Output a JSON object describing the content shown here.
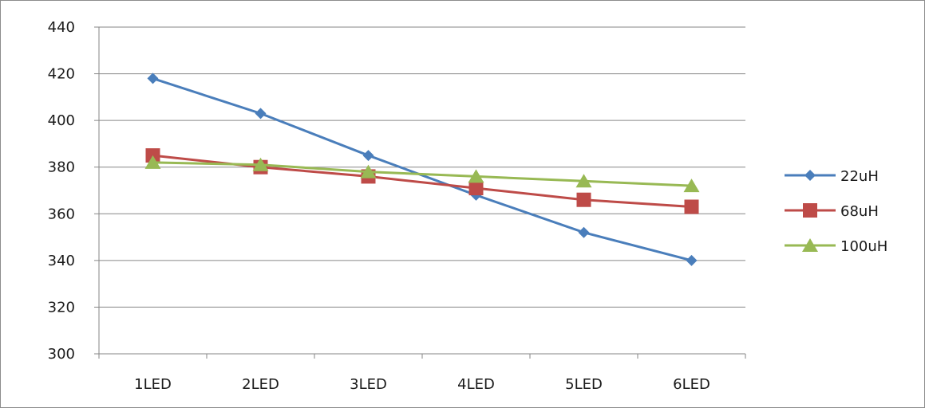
{
  "chart_data": {
    "type": "line",
    "title": "",
    "xlabel": "",
    "ylabel": "",
    "categories": [
      "1LED",
      "2LED",
      "3LED",
      "4LED",
      "5LED",
      "6LED"
    ],
    "ylim": [
      300,
      440
    ],
    "yticks": [
      300,
      320,
      340,
      360,
      380,
      400,
      420,
      440
    ],
    "grid": true,
    "legend_position": "right",
    "series": [
      {
        "name": "22uH",
        "color": "#4A7EBB",
        "marker": "diamond",
        "values": [
          418,
          403,
          385,
          368,
          352,
          340
        ]
      },
      {
        "name": "68uH",
        "color": "#BE4B48",
        "marker": "square",
        "values": [
          385,
          380,
          376,
          371,
          366,
          363
        ]
      },
      {
        "name": "100uH",
        "color": "#98B954",
        "marker": "triangle",
        "values": [
          382,
          381,
          378,
          376,
          374,
          372
        ]
      }
    ]
  }
}
